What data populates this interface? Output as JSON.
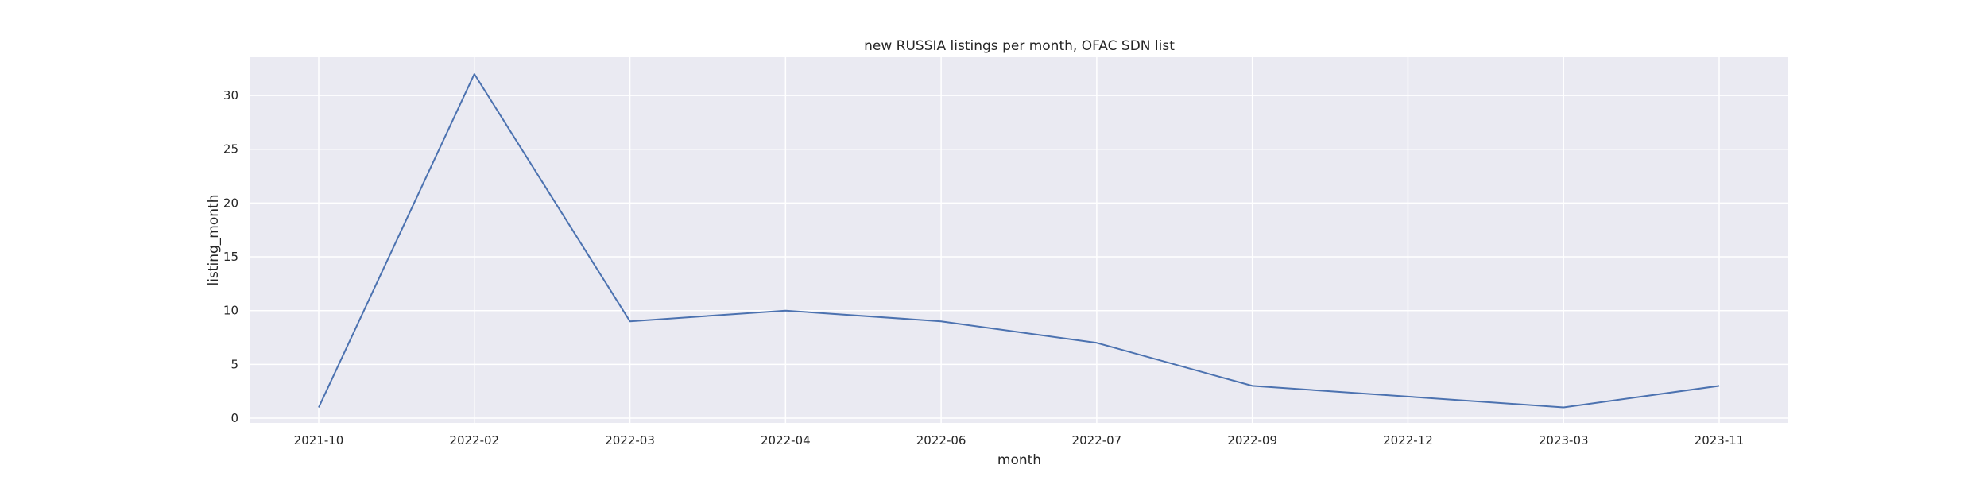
{
  "chart_data": {
    "type": "line",
    "title": "new RUSSIA listings per month, OFAC SDN list",
    "xlabel": "month",
    "ylabel": "listing_month",
    "categories": [
      "2021-10",
      "2022-02",
      "2022-03",
      "2022-04",
      "2022-06",
      "2022-07",
      "2022-09",
      "2022-12",
      "2023-03",
      "2023-11"
    ],
    "series": [
      {
        "values": [
          1,
          32,
          9,
          10,
          9,
          7,
          3,
          2,
          1,
          3
        ]
      }
    ],
    "ylim": [
      0,
      33.6
    ],
    "yticks": [
      0,
      5,
      10,
      15,
      20,
      25,
      30
    ],
    "grid": true,
    "legend": "none",
    "colors": {
      "line": "#4c72b0",
      "plot_background": "#eaeaf2",
      "grid": "#ffffff"
    }
  }
}
